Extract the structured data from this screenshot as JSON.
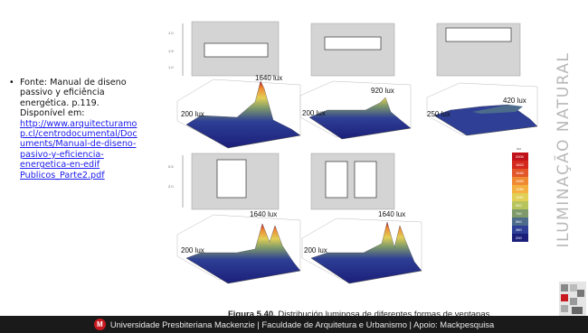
{
  "source": {
    "bullet": "•",
    "lines": [
      "Fonte: Manual de diseno",
      "passivo y eficiência",
      "energética.  p.119.",
      "Disponível em:"
    ],
    "link_lines": [
      "http://www.arquitecturamo",
      "p.cl/centrodocumental/Doc",
      "uments/Manual-de-diseno-",
      "pasivo-y-eficiencia-",
      "energetica-en-edif",
      "Publicos_Parte2.pdf"
    ]
  },
  "figure": {
    "caption_bold": "Figura 5.40.",
    "caption_text": " Distribución luminosa de diferentes formas de ventanas.",
    "plots": [
      {
        "low": "200 lux",
        "high": "1640 lux"
      },
      {
        "low": "200 lux",
        "high": "920 lux"
      },
      {
        "low": "250 lux",
        "high": "420 lux"
      },
      {
        "low": "200 lux",
        "high": "1640 lux"
      },
      {
        "low": "200 lux",
        "high": "1640 lux"
      }
    ],
    "legend": {
      "title": "lux",
      "values": [
        "2000",
        "1820",
        "1640",
        "1460",
        "1280",
        "1100",
        "920",
        "740",
        "560",
        "380",
        "200"
      ],
      "colors": [
        "#c1121a",
        "#d4291c",
        "#e2562a",
        "#ef8a33",
        "#f4b040",
        "#e2cf55",
        "#b7c45c",
        "#7f9a6a",
        "#4d6c8b",
        "#2e3f95",
        "#1b1f7a"
      ]
    }
  },
  "side_title": "ILUMINAÇÃO NATURAL",
  "footer": {
    "mark": "M",
    "text": "Universidade Presbiteriana Mackenzie | Faculdade de Arquitetura e Urbanismo | Apoio: Mackpesquisa"
  }
}
